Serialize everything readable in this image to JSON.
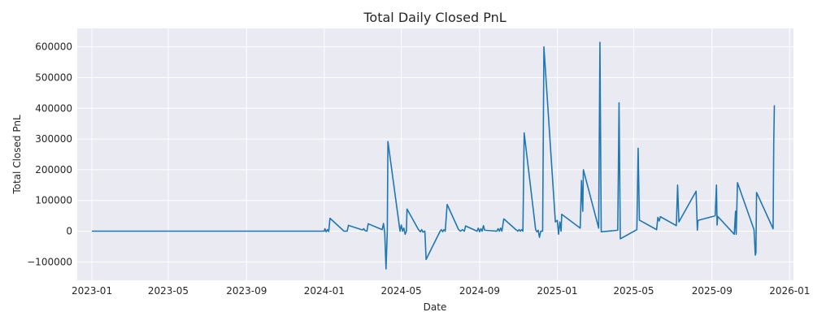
{
  "chart_data": {
    "type": "line",
    "title": "Total Daily Closed PnL",
    "xlabel": "Date",
    "ylabel": "Total Closed PnL",
    "x_tick_labels": [
      "2023-01",
      "2023-05",
      "2023-09",
      "2024-01",
      "2024-05",
      "2024-09",
      "2025-01",
      "2025-05",
      "2025-09",
      "2026-01"
    ],
    "y_tick_values": [
      -100000,
      0,
      100000,
      200000,
      300000,
      400000,
      500000,
      600000
    ],
    "y_tick_labels": [
      "−100000",
      "0",
      "100000",
      "200000",
      "300000",
      "400000",
      "500000",
      "600000"
    ],
    "xlim": [
      "2022-12-09",
      "2026-01-07"
    ],
    "ylim": [
      -160000,
      660000
    ],
    "grid": true,
    "series": [
      {
        "color": "#1f77b4",
        "points": [
          [
            "2023-01-01",
            0
          ],
          [
            "2024-01-01",
            0
          ],
          [
            "2024-01-02",
            8000
          ],
          [
            "2024-01-04",
            -2000
          ],
          [
            "2024-01-06",
            5000
          ],
          [
            "2024-01-08",
            -1000
          ],
          [
            "2024-01-10",
            42000
          ],
          [
            "2024-02-01",
            0
          ],
          [
            "2024-02-06",
            0
          ],
          [
            "2024-02-08",
            19000
          ],
          [
            "2024-03-01",
            4000
          ],
          [
            "2024-03-03",
            8000
          ],
          [
            "2024-03-05",
            2000
          ],
          [
            "2024-03-08",
            0
          ],
          [
            "2024-03-10",
            24000
          ],
          [
            "2024-04-01",
            5000
          ],
          [
            "2024-04-03",
            25000
          ],
          [
            "2024-04-05",
            -5000
          ],
          [
            "2024-04-07",
            -123000
          ],
          [
            "2024-04-09",
            0
          ],
          [
            "2024-04-10",
            292000
          ],
          [
            "2024-04-29",
            0
          ],
          [
            "2024-05-01",
            20000
          ],
          [
            "2024-05-03",
            0
          ],
          [
            "2024-05-05",
            10000
          ],
          [
            "2024-05-07",
            -10000
          ],
          [
            "2024-05-09",
            0
          ],
          [
            "2024-05-10",
            72000
          ],
          [
            "2024-05-28",
            5000
          ],
          [
            "2024-05-31",
            -2000
          ],
          [
            "2024-06-02",
            5000
          ],
          [
            "2024-06-04",
            -3000
          ],
          [
            "2024-06-07",
            0
          ],
          [
            "2024-06-09",
            -92000
          ],
          [
            "2024-07-01",
            0
          ],
          [
            "2024-07-03",
            5000
          ],
          [
            "2024-07-05",
            -2000
          ],
          [
            "2024-07-07",
            5000
          ],
          [
            "2024-07-09",
            0
          ],
          [
            "2024-07-12",
            87000
          ],
          [
            "2024-07-30",
            5000
          ],
          [
            "2024-08-02",
            0
          ],
          [
            "2024-08-05",
            5000
          ],
          [
            "2024-08-08",
            0
          ],
          [
            "2024-08-10",
            17000
          ],
          [
            "2024-08-28",
            0
          ],
          [
            "2024-08-30",
            10000
          ],
          [
            "2024-09-01",
            -2000
          ],
          [
            "2024-09-03",
            8000
          ],
          [
            "2024-09-05",
            0
          ],
          [
            "2024-09-07",
            18000
          ],
          [
            "2024-09-09",
            3000
          ],
          [
            "2024-09-28",
            0
          ],
          [
            "2024-09-30",
            8000
          ],
          [
            "2024-10-02",
            0
          ],
          [
            "2024-10-04",
            10000
          ],
          [
            "2024-10-06",
            0
          ],
          [
            "2024-10-09",
            40000
          ],
          [
            "2024-10-28",
            5000
          ],
          [
            "2024-10-31",
            0
          ],
          [
            "2024-11-02",
            5000
          ],
          [
            "2024-11-04",
            0
          ],
          [
            "2024-11-06",
            5000
          ],
          [
            "2024-11-08",
            0
          ],
          [
            "2024-11-10",
            320000
          ],
          [
            "2024-11-28",
            5000
          ],
          [
            "2024-11-30",
            -2000
          ],
          [
            "2024-12-02",
            3000
          ],
          [
            "2024-12-04",
            -20000
          ],
          [
            "2024-12-06",
            0
          ],
          [
            "2024-12-09",
            0
          ],
          [
            "2024-12-11",
            600000
          ],
          [
            "2024-12-29",
            30000
          ],
          [
            "2025-01-01",
            35000
          ],
          [
            "2025-01-03",
            -10000
          ],
          [
            "2025-01-05",
            30000
          ],
          [
            "2025-01-07",
            0
          ],
          [
            "2025-01-08",
            55000
          ],
          [
            "2025-02-06",
            10000
          ],
          [
            "2025-02-08",
            165000
          ],
          [
            "2025-02-10",
            65000
          ],
          [
            "2025-02-11",
            200000
          ],
          [
            "2025-03-07",
            10000
          ],
          [
            "2025-03-09",
            615000
          ],
          [
            "2025-03-11",
            -2000
          ],
          [
            "2025-04-06",
            3000
          ],
          [
            "2025-04-08",
            418000
          ],
          [
            "2025-04-10",
            -25000
          ],
          [
            "2025-05-06",
            5000
          ],
          [
            "2025-05-08",
            270000
          ],
          [
            "2025-05-10",
            36000
          ],
          [
            "2025-06-06",
            5000
          ],
          [
            "2025-06-08",
            45000
          ],
          [
            "2025-06-10",
            33000
          ],
          [
            "2025-06-12",
            47000
          ],
          [
            "2025-07-07",
            18000
          ],
          [
            "2025-07-09",
            150000
          ],
          [
            "2025-07-11",
            30000
          ],
          [
            "2025-08-07",
            130000
          ],
          [
            "2025-08-09",
            3000
          ],
          [
            "2025-08-10",
            35000
          ],
          [
            "2025-09-06",
            50000
          ],
          [
            "2025-09-08",
            150000
          ],
          [
            "2025-09-09",
            20000
          ],
          [
            "2025-09-10",
            48000
          ],
          [
            "2025-10-06",
            -10000
          ],
          [
            "2025-10-08",
            65000
          ],
          [
            "2025-10-09",
            -10000
          ],
          [
            "2025-10-11",
            158000
          ],
          [
            "2025-11-06",
            5000
          ],
          [
            "2025-11-08",
            -78000
          ],
          [
            "2025-11-09",
            -70000
          ],
          [
            "2025-11-10",
            126000
          ],
          [
            "2025-12-06",
            8000
          ],
          [
            "2025-12-07",
            290000
          ],
          [
            "2025-12-08",
            410000
          ]
        ]
      }
    ]
  }
}
